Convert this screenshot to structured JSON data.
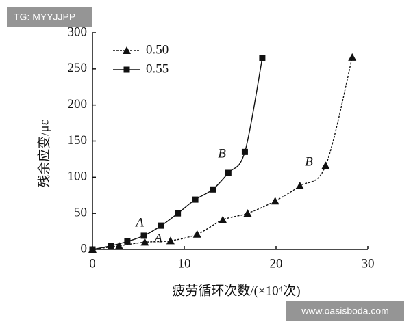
{
  "chart_data": {
    "type": "scatter",
    "xlabel": "疲劳循环次数/(×10⁴次)",
    "ylabel": "残余应变/με",
    "xlim": [
      0,
      30
    ],
    "xticks": [
      0,
      10,
      20,
      30
    ],
    "ylim": [
      0,
      300
    ],
    "yticks": [
      0,
      50,
      100,
      150,
      200,
      250,
      300
    ],
    "legend": "upper left",
    "series": [
      {
        "name": "0.50",
        "color": "#111111",
        "marker": "triangle",
        "line": "dashed",
        "x": [
          0,
          2.9,
          5.7,
          8.5,
          11.4,
          14.2,
          16.9,
          19.9,
          22.6,
          25.4,
          28.3
        ],
        "values": [
          0,
          5,
          10,
          12,
          21,
          41,
          50,
          67,
          88,
          116,
          266
        ]
      },
      {
        "name": "0.55",
        "color": "#111111",
        "marker": "square",
        "line": "solid",
        "x": [
          0,
          2,
          3.8,
          5.6,
          7.5,
          9.3,
          11.2,
          13.1,
          14.8,
          16.6,
          18.5
        ],
        "values": [
          0,
          5,
          11,
          19,
          33,
          50,
          69,
          83,
          106,
          135,
          265
        ]
      }
    ],
    "annotations": [
      "A",
      "A",
      "B",
      "B"
    ]
  },
  "watermarks": [
    "TG: MYYJJPP",
    "www.oasisboda.com"
  ]
}
